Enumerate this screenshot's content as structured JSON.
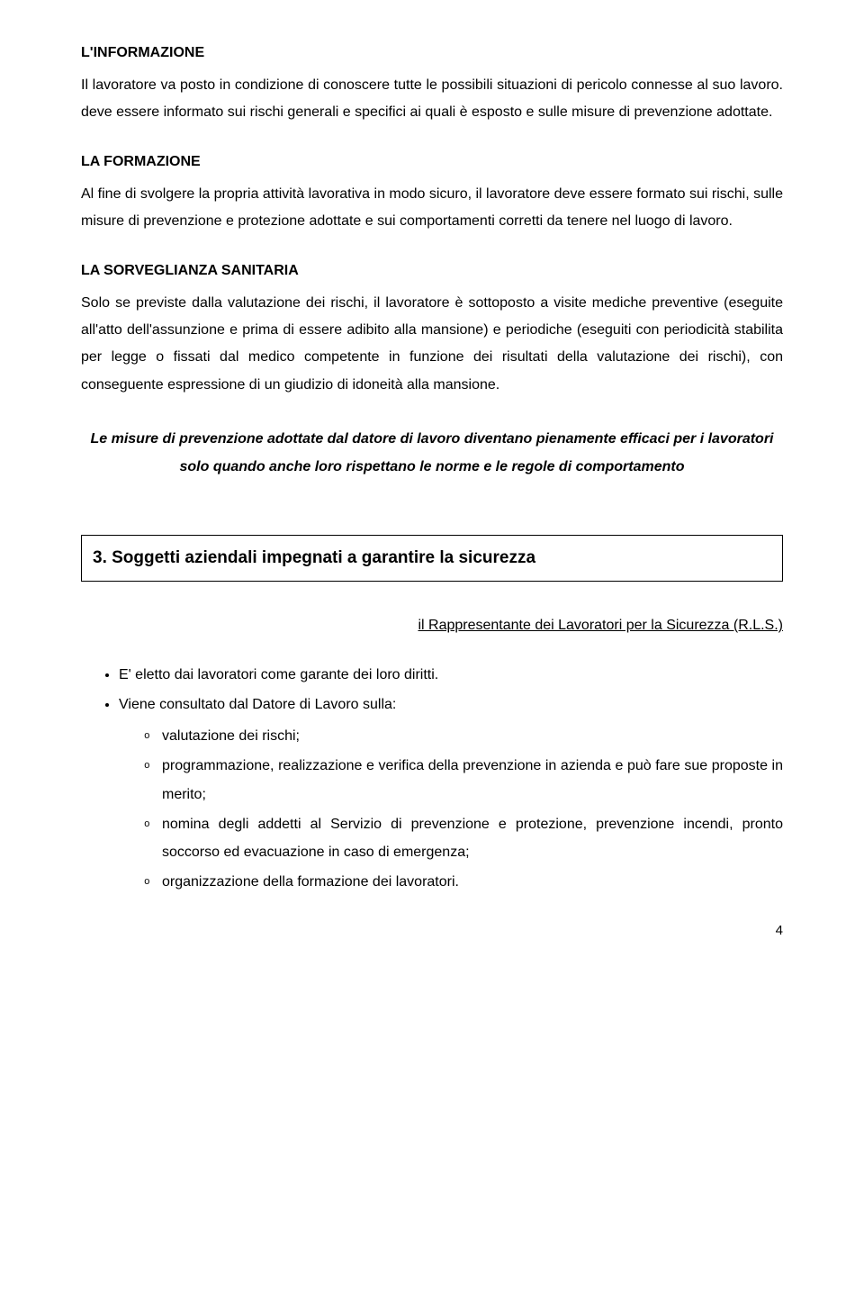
{
  "section1": {
    "title": "L'INFORMAZIONE",
    "body": "Il lavoratore va posto in condizione di conoscere tutte le possibili situazioni di pericolo connesse al suo lavoro. deve essere informato sui rischi generali e specifici ai quali è esposto e sulle misure di prevenzione adottate."
  },
  "section2": {
    "title": "LA FORMAZIONE",
    "body": "Al fine di svolgere la propria attività lavorativa in modo sicuro, il lavoratore deve essere formato sui rischi, sulle misure di prevenzione e protezione adottate e sui comportamenti corretti da tenere nel luogo di lavoro."
  },
  "section3": {
    "title": "LA SORVEGLIANZA SANITARIA",
    "body": "Solo se previste dalla valutazione dei rischi, il lavoratore è sottoposto a visite mediche preventive (eseguite all'atto dell'assunzione e prima di essere adibito alla mansione) e periodiche (eseguiti con periodicità stabilita per legge o fissati dal medico  competente in funzione dei  risultati della valutazione dei rischi), con conseguente espressione di un giudizio di idoneità alla mansione."
  },
  "emphasis": "Le misure di prevenzione adottate dal datore di lavoro diventano pienamente efficaci per i lavoratori solo quando anche loro rispettano le norme e le regole di comportamento",
  "boxed_heading": "3. Soggetti aziendali impegnati a garantire la sicurezza",
  "rls_heading": "il Rappresentante dei Lavoratori per la Sicurezza (R.L.S.)",
  "bullets": {
    "b1": "E' eletto dai lavoratori come garante dei loro diritti.",
    "b2": "Viene consultato dal Datore di Lavoro sulla:",
    "sub": {
      "s1": "valutazione dei rischi;",
      "s2": "programmazione, realizzazione e verifica della prevenzione in azienda e può fare sue proposte in merito;",
      "s3": "nomina degli addetti al Servizio di prevenzione e protezione, prevenzione incendi, pronto soccorso ed evacuazione in caso di emergenza;",
      "s4": "organizzazione della formazione dei lavoratori."
    }
  },
  "page_number": "4"
}
